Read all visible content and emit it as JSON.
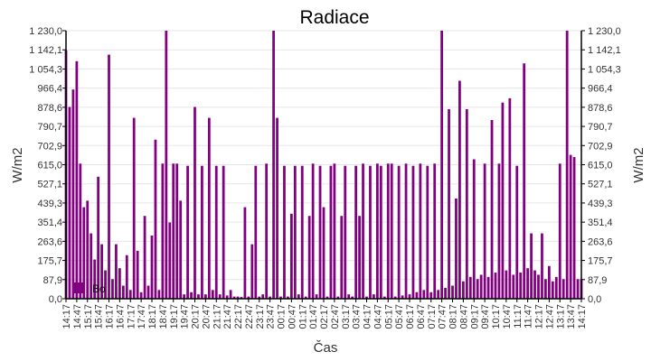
{
  "chart_data": {
    "type": "bar",
    "title": "Radiace",
    "xlabel": "Čas",
    "ylabel": "W/m2",
    "ylabel_right": "W/m2",
    "ylim": [
      0,
      1230
    ],
    "grid": true,
    "legend_placement": "bottom-left",
    "color": "#800080",
    "y_ticks": [
      "0,0",
      "87,9",
      "175,7",
      "263,6",
      "351,4",
      "439,3",
      "527,1",
      "615,0",
      "702,9",
      "790,7",
      "878,6",
      "966,4",
      "1 054,3",
      "1 142,1",
      "1 230,0"
    ],
    "x_ticks": [
      "14:17",
      "14:47",
      "15:17",
      "15:47",
      "16:17",
      "16:47",
      "17:17",
      "17:47",
      "18:17",
      "18:47",
      "19:17",
      "19:47",
      "20:17",
      "20:47",
      "21:17",
      "21:47",
      "22:17",
      "22:47",
      "23:17",
      "23:47",
      "00:17",
      "00:47",
      "01:17",
      "01:47",
      "02:17",
      "02:47",
      "03:17",
      "03:47",
      "04:17",
      "04:47",
      "05:17",
      "05:47",
      "06:17",
      "06:47",
      "07:17",
      "07:47",
      "08:17",
      "08:47",
      "09:17",
      "09:47",
      "10:17",
      "10:47",
      "11:17",
      "11:47",
      "12:17",
      "12:47",
      "13:17",
      "13:47",
      "14:17"
    ],
    "series": [
      {
        "name": "Bo",
        "values": [
          1140,
          880,
          960,
          1090,
          620,
          420,
          450,
          300,
          180,
          560,
          250,
          130,
          1120,
          90,
          250,
          140,
          60,
          200,
          40,
          830,
          220,
          30,
          380,
          60,
          290,
          730,
          40,
          620,
          1230,
          350,
          620,
          620,
          450,
          20,
          610,
          30,
          880,
          20,
          610,
          20,
          830,
          40,
          610,
          20,
          610,
          15,
          40,
          10,
          10,
          8,
          420,
          10,
          250,
          610,
          10,
          20,
          620,
          10,
          1230,
          830,
          10,
          610,
          10,
          390,
          610,
          20,
          610,
          10,
          380,
          620,
          20,
          610,
          420,
          10,
          610,
          620,
          10,
          380,
          610,
          20,
          10,
          610,
          380,
          620,
          10,
          610,
          20,
          620,
          610,
          10,
          620,
          620,
          10,
          610,
          15,
          620,
          20,
          610,
          30,
          620,
          40,
          610,
          30,
          620,
          40,
          1230,
          50,
          870,
          60,
          460,
          1000,
          80,
          870,
          100,
          640,
          90,
          110,
          620,
          100,
          820,
          120,
          620,
          900,
          130,
          920,
          110,
          610,
          120,
          1080,
          140,
          300,
          130,
          110,
          300,
          90,
          150,
          80,
          100,
          620,
          90,
          1230,
          660,
          650,
          90,
          90
        ]
      }
    ]
  }
}
